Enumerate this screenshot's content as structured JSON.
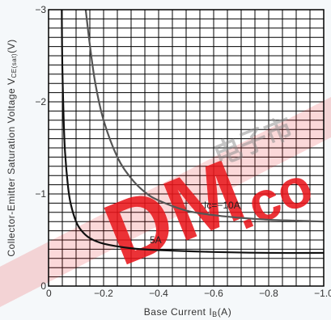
{
  "chart_data": {
    "type": "line",
    "title": "",
    "xlabel": "Base Current I",
    "xlabel_sub": "B",
    "xlabel_unit": "(A)",
    "ylabel": "Collector-Emitter Saturation Voltage V",
    "ylabel_sub": "CE(sat)",
    "ylabel_unit": "(V)",
    "xlim": [
      0,
      -1.0
    ],
    "ylim": [
      0,
      -3
    ],
    "x_ticks": [
      {
        "value": 0,
        "label": "0"
      },
      {
        "value": -0.2,
        "label": "−0.2"
      },
      {
        "value": -0.4,
        "label": "−0.4"
      },
      {
        "value": -0.6,
        "label": "−0.6"
      },
      {
        "value": -0.8,
        "label": "−0.8"
      },
      {
        "value": -1.0,
        "label": "−1.0"
      }
    ],
    "y_ticks": [
      {
        "value": 0,
        "label": "0"
      },
      {
        "value": -1,
        "label": "−1"
      },
      {
        "value": -2,
        "label": "−2"
      },
      {
        "value": -3,
        "label": "−3"
      }
    ],
    "grid": true,
    "series": [
      {
        "name": "Ic=−10A",
        "color": "#555555",
        "x": [
          -0.135,
          -0.15,
          -0.17,
          -0.2,
          -0.25,
          -0.3,
          -0.35,
          -0.4,
          -0.5,
          -0.6,
          -0.7,
          -0.8,
          -0.9,
          -1.0
        ],
        "y": [
          -3.0,
          -2.62,
          -2.2,
          -1.8,
          -1.4,
          -1.17,
          -1.02,
          -0.93,
          -0.82,
          -0.77,
          -0.74,
          -0.72,
          -0.71,
          -0.7
        ]
      },
      {
        "name": "−5A",
        "color": "#111111",
        "x": [
          -0.048,
          -0.05,
          -0.055,
          -0.06,
          -0.07,
          -0.08,
          -0.1,
          -0.12,
          -0.15,
          -0.2,
          -0.3,
          -0.4,
          -0.6,
          -0.8,
          -1.0
        ],
        "y": [
          -3.0,
          -2.4,
          -1.8,
          -1.45,
          -1.1,
          -0.9,
          -0.7,
          -0.6,
          -0.52,
          -0.46,
          -0.41,
          -0.39,
          -0.37,
          -0.36,
          -0.36
        ]
      }
    ],
    "annotations": [
      {
        "text": "Ic=−10A",
        "series": 0
      },
      {
        "text": "−5A",
        "series": 1
      }
    ]
  },
  "watermark": {
    "letters": "DM",
    "suffix": ".co",
    "chars": "电子市",
    "color": "#e8151b"
  }
}
